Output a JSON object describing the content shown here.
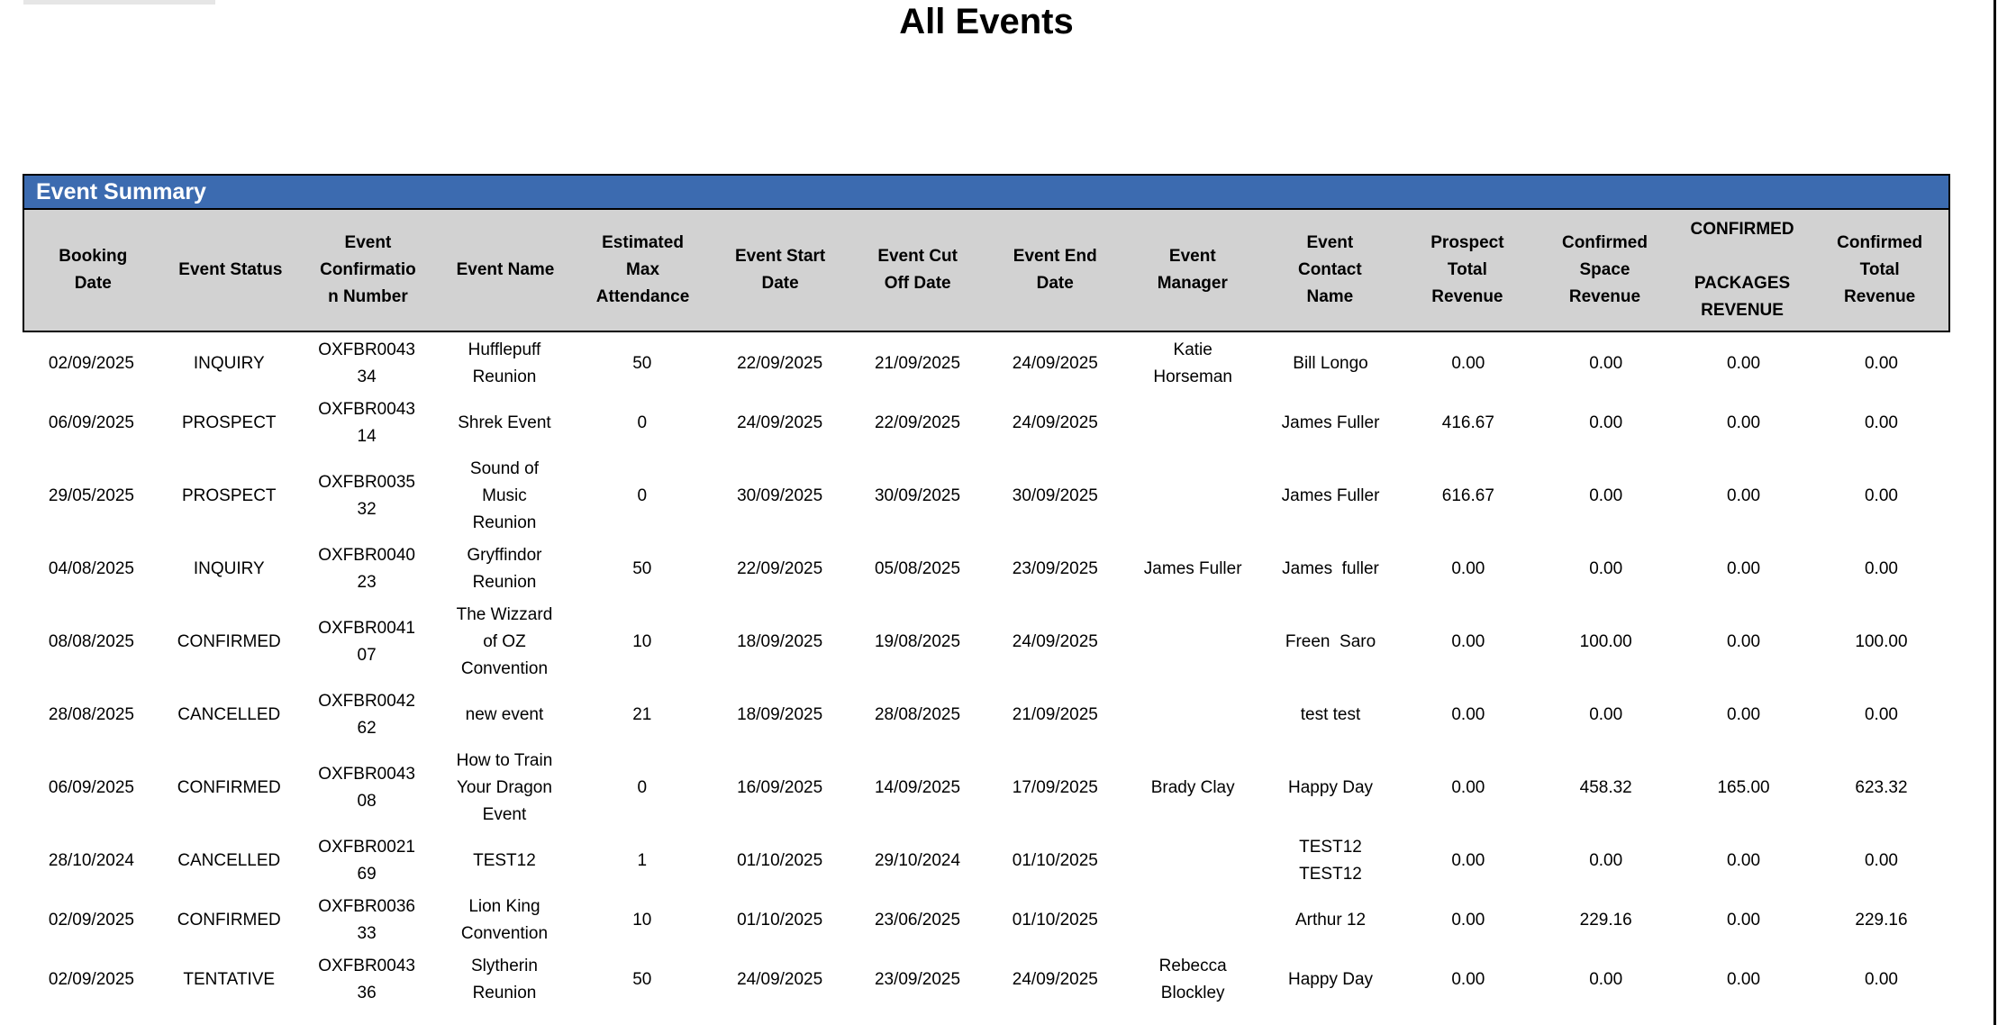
{
  "page": {
    "title": "All Events"
  },
  "colors": {
    "header_bar_bg": "#3c6bb0",
    "column_header_bg": "#d2d2d2",
    "border": "#000000"
  },
  "table": {
    "section_title": "Event Summary",
    "columns": [
      "Booking\nDate",
      "Event Status",
      "Event\nConfirmatio\nn Number",
      "Event Name",
      "Estimated\nMax\nAttendance",
      "Event Start\nDate",
      "Event Cut\nOff Date",
      "Event End\nDate",
      "Event\nManager",
      "Event\nContact\nName",
      "Prospect\nTotal\nRevenue",
      "Confirmed\nSpace\nRevenue",
      "CONFIRMED\n\nPACKAGES\nREVENUE",
      "Confirmed\nTotal\nRevenue"
    ],
    "rows": [
      [
        "02/09/2025",
        "INQUIRY",
        "OXFBR0043\n34",
        "Hufflepuff\nReunion",
        "50",
        "22/09/2025",
        "21/09/2025",
        "24/09/2025",
        "Katie\nHorseman",
        "Bill Longo",
        "0.00",
        "0.00",
        "0.00",
        "0.00"
      ],
      [
        "06/09/2025",
        "PROSPECT",
        "OXFBR0043\n14",
        "Shrek Event",
        "0",
        "24/09/2025",
        "22/09/2025",
        "24/09/2025",
        "",
        "James Fuller",
        "416.67",
        "0.00",
        "0.00",
        "0.00"
      ],
      [
        "29/05/2025",
        "PROSPECT",
        "OXFBR0035\n32",
        "Sound of\nMusic\nReunion",
        "0",
        "30/09/2025",
        "30/09/2025",
        "30/09/2025",
        "",
        "James Fuller",
        "616.67",
        "0.00",
        "0.00",
        "0.00"
      ],
      [
        "04/08/2025",
        "INQUIRY",
        "OXFBR0040\n23",
        "Gryffindor\nReunion",
        "50",
        "22/09/2025",
        "05/08/2025",
        "23/09/2025",
        "James Fuller",
        "James  fuller",
        "0.00",
        "0.00",
        "0.00",
        "0.00"
      ],
      [
        "08/08/2025",
        "CONFIRMED",
        "OXFBR0041\n07",
        "The Wizzard\nof OZ\nConvention",
        "10",
        "18/09/2025",
        "19/08/2025",
        "24/09/2025",
        "",
        "Freen  Saro",
        "0.00",
        "100.00",
        "0.00",
        "100.00"
      ],
      [
        "28/08/2025",
        "CANCELLED",
        "OXFBR0042\n62",
        "new event",
        "21",
        "18/09/2025",
        "28/08/2025",
        "21/09/2025",
        "",
        "test test",
        "0.00",
        "0.00",
        "0.00",
        "0.00"
      ],
      [
        "06/09/2025",
        "CONFIRMED",
        "OXFBR0043\n08",
        "How to Train\nYour Dragon\nEvent",
        "0",
        "16/09/2025",
        "14/09/2025",
        "17/09/2025",
        "Brady Clay",
        "Happy Day",
        "0.00",
        "458.32",
        "165.00",
        "623.32"
      ],
      [
        "28/10/2024",
        "CANCELLED",
        "OXFBR0021\n69",
        "TEST12",
        "1",
        "01/10/2025",
        "29/10/2024",
        "01/10/2025",
        "",
        "TEST12\nTEST12",
        "0.00",
        "0.00",
        "0.00",
        "0.00"
      ],
      [
        "02/09/2025",
        "CONFIRMED",
        "OXFBR0036\n33",
        "Lion King\nConvention",
        "10",
        "01/10/2025",
        "23/06/2025",
        "01/10/2025",
        "",
        "Arthur 12",
        "0.00",
        "229.16",
        "0.00",
        "229.16"
      ],
      [
        "02/09/2025",
        "TENTATIVE",
        "OXFBR0043\n36",
        "Slytherin\nReunion",
        "50",
        "24/09/2025",
        "23/09/2025",
        "24/09/2025",
        "Rebecca\nBlockley",
        "Happy Day",
        "0.00",
        "0.00",
        "0.00",
        "0.00"
      ]
    ]
  }
}
